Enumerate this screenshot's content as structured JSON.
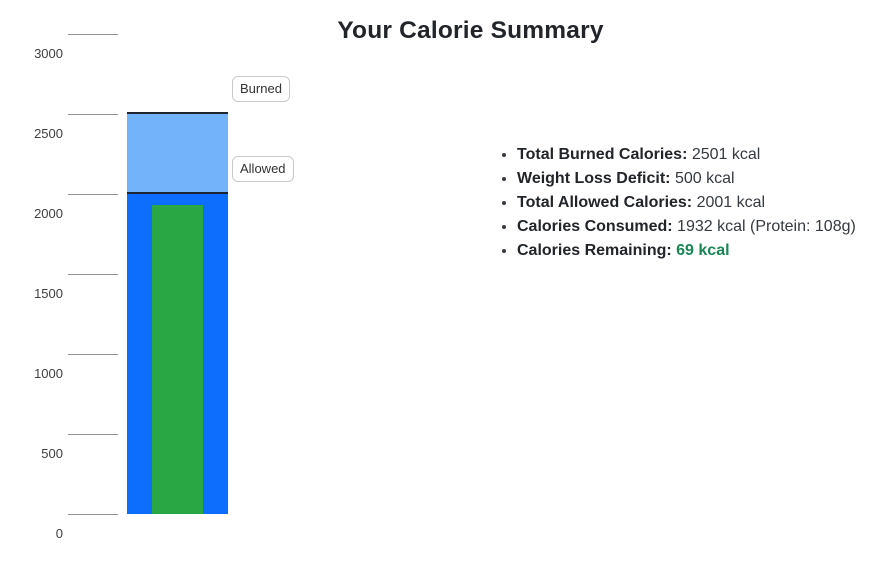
{
  "title": "Your Calorie Summary",
  "colors": {
    "burned_fill": "#73b3f9",
    "allowed_fill": "#0d6efd",
    "consumed_fill": "#2aa745",
    "bar_top_border": "#1e2430",
    "remaining_text": "#198754",
    "tick_line": "#919191",
    "text_dark": "#212529"
  },
  "chart_data": {
    "type": "bar",
    "title": "Your Calorie Summary",
    "xlabel": "",
    "ylabel": "",
    "ylim": [
      0,
      3100
    ],
    "yticks": [
      0,
      500,
      1000,
      1500,
      2000,
      2500,
      3000
    ],
    "grid": "tick-marks-only",
    "legend_position": "boxes-right-of-bar",
    "series": [
      {
        "name": "Burned",
        "value": 2501,
        "color": "#73b3f9"
      },
      {
        "name": "Allowed",
        "value": 2001,
        "color": "#0d6efd"
      },
      {
        "name": "Consumed",
        "value": 1932,
        "color": "#2aa745"
      }
    ]
  },
  "summary": {
    "items": [
      {
        "label": "Total Burned Calories:",
        "value": "2501 kcal"
      },
      {
        "label": "Weight Loss Deficit:",
        "value": "500 kcal"
      },
      {
        "label": "Total Allowed Calories:",
        "value": "2001 kcal"
      },
      {
        "label": "Calories Consumed:",
        "value": "1932 kcal (Protein: 108g)"
      },
      {
        "label": "Calories Remaining:",
        "value": "69 kcal",
        "highlight": true
      }
    ]
  }
}
